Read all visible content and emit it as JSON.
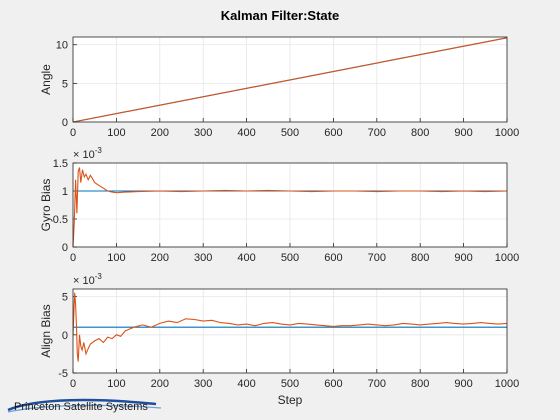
{
  "title": "Kalman Filter:State",
  "xlabel": "Step",
  "logo_text": "Princeton Satellite Systems",
  "colors": {
    "true": "#0072BD",
    "estimate": "#D95319",
    "grid": "#e6e6e6",
    "axes": "#262626",
    "background": "#f0f0f0"
  },
  "chart_data": [
    {
      "type": "line",
      "ylabel": "Angle",
      "exponent": "",
      "xlim": [
        0,
        1000
      ],
      "ylim": [
        0,
        11
      ],
      "x_ticks": [
        "0",
        "100",
        "200",
        "300",
        "400",
        "500",
        "600",
        "700",
        "800",
        "900",
        "1000"
      ],
      "y_ticks": [
        {
          "v": 0,
          "label": "0"
        },
        {
          "v": 5,
          "label": "5"
        },
        {
          "v": 10,
          "label": "10"
        }
      ],
      "grid": true,
      "series": [
        {
          "role": "true",
          "x": [
            0,
            1000
          ],
          "y": [
            0,
            10.9
          ]
        },
        {
          "role": "estimate",
          "x": [
            0,
            1000
          ],
          "y": [
            0,
            10.9
          ]
        }
      ]
    },
    {
      "type": "line",
      "ylabel": "Gyro Bias",
      "exponent": "-3",
      "xlim": [
        0,
        1000
      ],
      "ylim": [
        0,
        1.5
      ],
      "x_ticks": [
        "0",
        "100",
        "200",
        "300",
        "400",
        "500",
        "600",
        "700",
        "800",
        "900",
        "1000"
      ],
      "y_ticks": [
        {
          "v": 0,
          "label": "0"
        },
        {
          "v": 0.5,
          "label": "0.5"
        },
        {
          "v": 1,
          "label": "1"
        },
        {
          "v": 1.5,
          "label": "1.5"
        }
      ],
      "grid": true,
      "series": [
        {
          "role": "true",
          "x": [
            0,
            1000
          ],
          "y": [
            1.0,
            1.0
          ]
        },
        {
          "role": "estimate",
          "x": [
            0,
            3,
            6,
            9,
            12,
            15,
            18,
            22,
            26,
            30,
            35,
            40,
            45,
            50,
            60,
            70,
            80,
            90,
            100,
            120,
            150,
            200,
            250,
            300,
            350,
            400,
            450,
            500,
            550,
            600,
            650,
            700,
            750,
            800,
            850,
            900,
            950,
            1000
          ],
          "y": [
            0,
            0.45,
            1.2,
            0.6,
            1.35,
            1.42,
            1.15,
            1.38,
            1.25,
            1.3,
            1.2,
            1.28,
            1.22,
            1.15,
            1.1,
            1.05,
            1.0,
            0.98,
            0.97,
            0.98,
            0.99,
            1.0,
            0.99,
            1.0,
            1.01,
            1.0,
            1.01,
            1.0,
            0.99,
            1.0,
            1.0,
            0.99,
            1.0,
            1.0,
            0.99,
            1.0,
            0.99,
            1.0
          ]
        }
      ]
    },
    {
      "type": "line",
      "ylabel": "Align Bias",
      "exponent": "-3",
      "xlim": [
        0,
        1000
      ],
      "ylim": [
        -5,
        6
      ],
      "x_ticks": [
        "0",
        "100",
        "200",
        "300",
        "400",
        "500",
        "600",
        "700",
        "800",
        "900",
        "1000"
      ],
      "y_ticks": [
        {
          "v": -5,
          "label": "-5"
        },
        {
          "v": 0,
          "label": "0"
        },
        {
          "v": 5,
          "label": "5"
        }
      ],
      "grid": true,
      "series": [
        {
          "role": "true",
          "x": [
            0,
            1000
          ],
          "y": [
            1.0,
            1.0
          ]
        },
        {
          "role": "estimate",
          "x": [
            0,
            2,
            4,
            6,
            8,
            10,
            12,
            15,
            18,
            21,
            25,
            30,
            35,
            40,
            50,
            60,
            70,
            80,
            90,
            100,
            110,
            120,
            140,
            160,
            180,
            200,
            220,
            240,
            260,
            280,
            300,
            320,
            340,
            360,
            380,
            400,
            420,
            440,
            460,
            480,
            500,
            520,
            540,
            560,
            580,
            600,
            620,
            640,
            660,
            680,
            700,
            720,
            740,
            760,
            780,
            800,
            820,
            840,
            860,
            880,
            900,
            920,
            940,
            960,
            980,
            1000
          ],
          "y": [
            0,
            3.0,
            5.5,
            4.0,
            1.0,
            -2.5,
            -3.5,
            0.0,
            -1.5,
            -2.0,
            -1.0,
            -2.5,
            -1.8,
            -1.2,
            -0.8,
            -0.5,
            -1.0,
            -0.3,
            -0.5,
            0.0,
            -0.2,
            0.5,
            1.0,
            1.3,
            1.0,
            1.5,
            1.8,
            1.6,
            2.1,
            2.0,
            1.8,
            1.9,
            1.6,
            1.5,
            1.3,
            1.4,
            1.2,
            1.5,
            1.6,
            1.4,
            1.3,
            1.5,
            1.4,
            1.3,
            1.2,
            1.1,
            1.2,
            1.2,
            1.3,
            1.4,
            1.3,
            1.2,
            1.3,
            1.5,
            1.4,
            1.3,
            1.4,
            1.5,
            1.6,
            1.5,
            1.4,
            1.5,
            1.6,
            1.5,
            1.4,
            1.5
          ]
        }
      ]
    }
  ]
}
